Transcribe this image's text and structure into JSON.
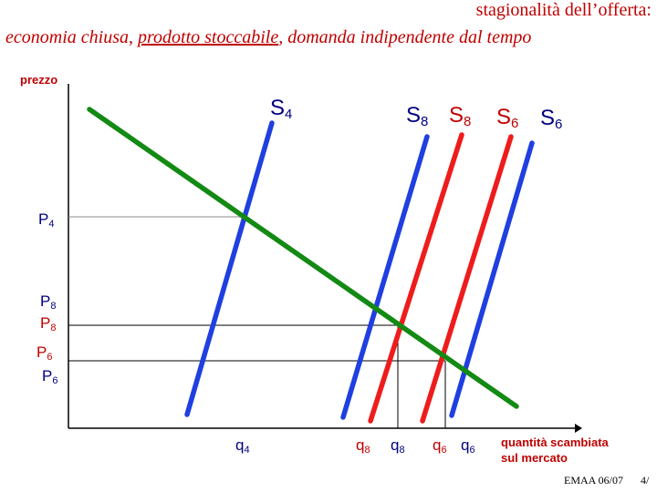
{
  "title": {
    "line1": "stagionalità dell’offerta:",
    "line2_prefix": "economia chiusa, ",
    "line2_underlined": "prodotto stoccabile",
    "line2_suffix": ", domanda indipendente dal tempo"
  },
  "axes": {
    "y_label": "prezzo",
    "x_label_line1": "quantità scambiata",
    "x_label_line2": "sul mercato"
  },
  "supply_labels": [
    {
      "base": "S",
      "sub": "4"
    },
    {
      "base": "S",
      "sub": "8"
    },
    {
      "base": "S",
      "sub": "8"
    },
    {
      "base": "S",
      "sub": "6"
    },
    {
      "base": "S",
      "sub": "6"
    }
  ],
  "price_labels": [
    {
      "base": "P",
      "sub": "4"
    },
    {
      "base": "P",
      "sub": "8"
    },
    {
      "base": "P",
      "sub": "8"
    },
    {
      "base": "P",
      "sub": "6"
    },
    {
      "base": "P",
      "sub": "6"
    }
  ],
  "quantity_labels": [
    {
      "base": "q",
      "sub": "4"
    },
    {
      "base": "q",
      "sub": "8"
    },
    {
      "base": "q",
      "sub": "8"
    },
    {
      "base": "q",
      "sub": "6"
    },
    {
      "base": "q",
      "sub": "6"
    }
  ],
  "colors": {
    "demand": "#138a13",
    "supply_blue": "#1f3fe0",
    "supply_red": "#ee1c1c",
    "label_red": "#c00000",
    "label_blue": "#000080"
  },
  "footer": {
    "left": "EMAA 06/07",
    "right": "4/"
  }
}
